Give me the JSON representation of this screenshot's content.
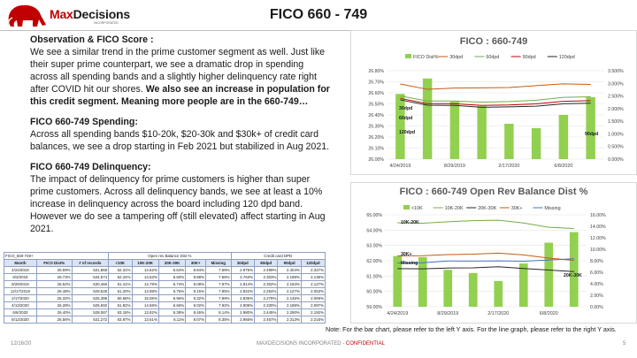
{
  "header": {
    "brand_main": "Max",
    "brand_accent": "Decisions",
    "brand_sub": "INCORPORATED",
    "title": "FICO 660 - 749"
  },
  "text": {
    "obs_heading": "Observation & FICO Score :",
    "obs_body": "We see a similar trend in the prime customer segment as well. Just like their super prime counterpart, we see a dramatic drop in spending across all spending bands and a slightly higher delinquency rate right after COVID hit our shores.",
    "obs_bold": " We also see an increase in population for this credit segment. Meaning more people are in the 660-749…",
    "spend_heading": "FICO 660-749 Spending:",
    "spend_body": "Across all spending bands $10-20k, $20-30k and $30k+ of credit card balances, we see a drop starting in Feb 2021 but stabilized in Aug 2021.",
    "delq_heading": "FICO 660-749 Delinquency:",
    "delq_body": "The impact of delinquency for prime customers is higher than super prime customers. Across all delinquency bands, we see at least a 10% increase in delinquency across the board including 120 dpd band. However we do see a tampering off (still elevated) affect starting in Aug 2021."
  },
  "table": {
    "caption": "FICO_660-749+",
    "group1": "Open rev Balance Dist %",
    "group2": "Credit card DPD",
    "columns": [
      "Month",
      "FICO Dist%",
      "# of records",
      "<10K",
      "10K-20K",
      "20K-30K",
      "30K+",
      "Missing",
      "30dpd",
      "60dpd",
      "90dpd",
      "120dpd"
    ],
    "rows": [
      [
        "4/24/2019",
        "26.59%",
        "531,868",
        "62.31%",
        "14.62%",
        "6.64%",
        "8.84%",
        "7.59%",
        "2.975%",
        "2.499%",
        "2.404%",
        "2.347%"
      ],
      [
        "6/3/2019",
        "26.73%",
        "534,574",
        "62.24%",
        "14.53%",
        "6.60%",
        "8.88%",
        "7.66%",
        "2.763%",
        "2.303%",
        "2.198%",
        "2.136%"
      ],
      [
        "8/29/2019",
        "26.52%",
        "530,466",
        "61.41%",
        "14.79%",
        "6.74%",
        "9.08%",
        "7.97%",
        "2.814%",
        "2.302%",
        "2.194%",
        "2.127%"
      ],
      [
        "12/17/2019",
        "26.48%",
        "529,528",
        "61.20%",
        "14.98%",
        "6.76%",
        "9.15%",
        "7.95%",
        "2.822%",
        "2.254%",
        "2.127%",
        "2.053%"
      ],
      [
        "2/17/2020",
        "26.32%",
        "526,385",
        "60.68%",
        "15.06%",
        "6.96%",
        "9.32%",
        "7.99%",
        "2.835%",
        "2.278%",
        "2.145%",
        "2.069%"
      ],
      [
        "4/13/2020",
        "26.28%",
        "525,592",
        "61.82%",
        "14.58%",
        "6.66%",
        "9.02%",
        "7.92%",
        "2.909%",
        "2.330%",
        "2.188%",
        "2.097%"
      ],
      [
        "6/8/2020",
        "26.40%",
        "528,067",
        "63.18%",
        "13.82%",
        "6.39%",
        "8.46%",
        "8.14%",
        "2.980%",
        "2.445%",
        "2.290%",
        "2.192%"
      ],
      [
        "8/12/2020",
        "26.56%",
        "531,272",
        "63.87%",
        "13.61%",
        "6.11%",
        "8.07%",
        "8.35%",
        "2.956%",
        "2.467%",
        "2.313%",
        "2.215%"
      ]
    ]
  },
  "chart_data": [
    {
      "type": "bar",
      "title": "FICO : 660-749",
      "x": [
        "4/24/2019",
        "6/3/2019",
        "8/29/2019",
        "12/17/2019",
        "2/17/2020",
        "4/13/2020",
        "6/8/2020",
        "8/12/2020"
      ],
      "xticks": [
        "4/24/2019",
        "8/29/2019",
        "2/17/2020",
        "6/8/2020"
      ],
      "ylim": [
        26.0,
        26.8
      ],
      "yticks": [
        "26.00%",
        "26.10%",
        "26.20%",
        "26.30%",
        "26.40%",
        "26.50%",
        "26.60%",
        "26.70%",
        "26.80%"
      ],
      "y2lim": [
        0.0,
        3.5
      ],
      "y2ticks": [
        "0.000%",
        "0.500%",
        "1.000%",
        "1.500%",
        "2.000%",
        "2.500%",
        "3.000%",
        "3.500%"
      ],
      "bars": {
        "name": "FICO Dist%",
        "values": [
          26.59,
          26.73,
          26.52,
          26.48,
          26.32,
          26.28,
          26.4,
          26.56
        ]
      },
      "series": [
        {
          "name": "30dpd",
          "values": [
            2.975,
            2.763,
            2.814,
            2.822,
            2.835,
            2.909,
            2.98,
            2.956
          ]
        },
        {
          "name": "60dpd",
          "values": [
            2.499,
            2.303,
            2.302,
            2.254,
            2.278,
            2.33,
            2.445,
            2.467
          ]
        },
        {
          "name": "90dpd",
          "values": [
            2.404,
            2.198,
            2.194,
            2.127,
            2.145,
            2.188,
            2.29,
            2.313
          ]
        },
        {
          "name": "120dpd",
          "values": [
            2.347,
            2.136,
            2.127,
            2.053,
            2.069,
            2.097,
            2.192,
            2.215
          ]
        }
      ],
      "labels": [
        "30dpd",
        "60dpd",
        "120dpd",
        "90dpd"
      ],
      "colors": {
        "bar": "#92d050",
        "30dpd": "#c55a11",
        "60dpd": "#70ad47",
        "90dpd": "#c00000",
        "120dpd": "#262626"
      }
    },
    {
      "type": "bar",
      "title": "FICO : 660-749  Open Rev Balance Dist %",
      "x": [
        "4/24/2019",
        "6/3/2019",
        "8/29/2019",
        "12/17/2019",
        "2/17/2020",
        "4/13/2020",
        "6/8/2020",
        "8/12/2020"
      ],
      "xticks": [
        "4/24/2019",
        "8/29/2019",
        "2/17/2020",
        "6/8/2020"
      ],
      "ylim": [
        59.0,
        65.0
      ],
      "yticks": [
        "59.00%",
        "60.00%",
        "61.00%",
        "62.00%",
        "63.00%",
        "64.00%",
        "65.00%"
      ],
      "y2lim": [
        0.0,
        16.0
      ],
      "y2ticks": [
        "0.00%",
        "2.00%",
        "4.00%",
        "6.00%",
        "8.00%",
        "10.00%",
        "12.00%",
        "14.00%",
        "16.00%"
      ],
      "bars": {
        "name": "<10K",
        "values": [
          62.31,
          62.24,
          61.41,
          61.2,
          60.68,
          61.82,
          63.18,
          63.87
        ]
      },
      "series": [
        {
          "name": "10K-20K",
          "values": [
            14.62,
            14.53,
            14.79,
            14.98,
            15.06,
            14.58,
            13.82,
            13.61
          ]
        },
        {
          "name": "20K-30K",
          "values": [
            6.64,
            6.6,
            6.74,
            6.76,
            6.96,
            6.66,
            6.39,
            6.11
          ]
        },
        {
          "name": "30K+",
          "values": [
            8.84,
            8.88,
            9.08,
            9.15,
            9.32,
            9.02,
            8.46,
            8.07
          ]
        },
        {
          "name": "Missing",
          "values": [
            7.59,
            7.66,
            7.97,
            7.95,
            7.99,
            7.92,
            8.14,
            8.35
          ]
        }
      ],
      "labels": [
        "10K-20K",
        "30K+",
        "Missing",
        "20K-30K"
      ],
      "colors": {
        "bar": "#92d050",
        "10K-20K": "#70ad47",
        "20K-30K": "#262626",
        "30K+": "#c55a11",
        "Missing": "#4472c4"
      }
    }
  ],
  "note": "Note: For the bar chart, please refer to the left Y axis. For the line graph, please refer to the right Y axis.",
  "footer": {
    "date": "12/16/20",
    "company": "MAXDECISIONS INCORPORATED - ",
    "confidential": "CONFIDENTIAL",
    "page": "5"
  }
}
